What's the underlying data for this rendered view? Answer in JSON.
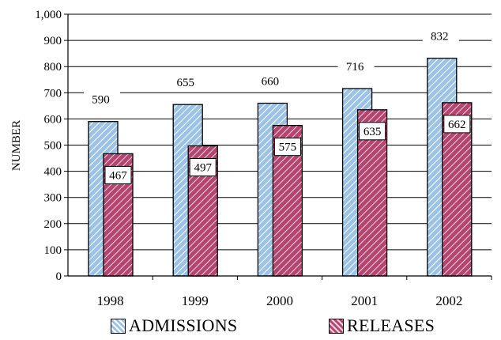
{
  "chart_data": {
    "type": "bar",
    "categories": [
      "1998",
      "1999",
      "2000",
      "2001",
      "2002"
    ],
    "series": [
      {
        "name": "ADMISSIONS",
        "values": [
          590,
          655,
          660,
          716,
          832
        ],
        "color": "#9cc3e6",
        "hatch": "#ffffff"
      },
      {
        "name": "RELEASES",
        "values": [
          467,
          497,
          575,
          635,
          662
        ],
        "color": "#b4456f",
        "hatch": "#f0d2df"
      }
    ],
    "ylabel": "NUMBER",
    "xlabel": "",
    "ylim": [
      0,
      1000
    ],
    "yticks": [
      "0",
      "100",
      "200",
      "300",
      "400",
      "500",
      "600",
      "700",
      "800",
      "900",
      "1,000"
    ],
    "grid": true,
    "legend": "bottom"
  }
}
